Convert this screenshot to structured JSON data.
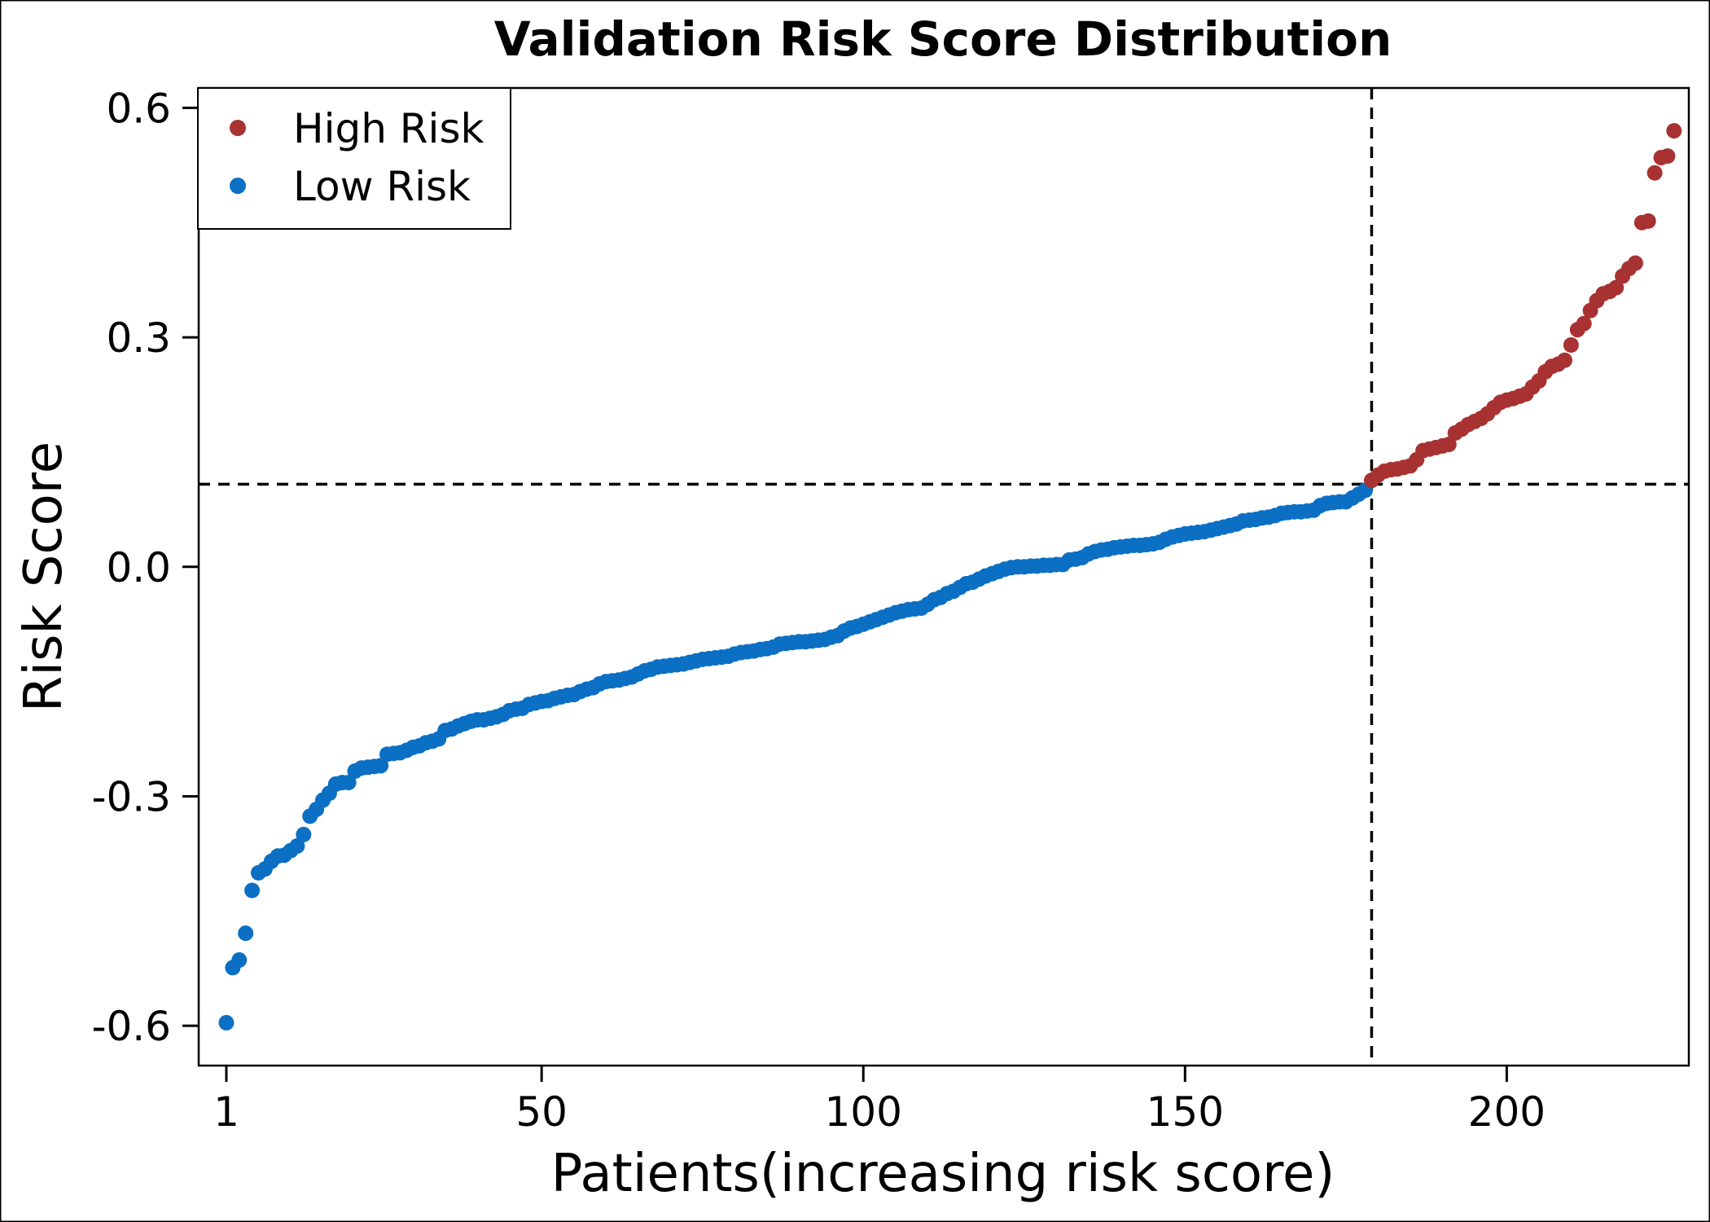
{
  "chart_data": {
    "type": "scatter",
    "title": "Validation Risk Score Distribution",
    "xlabel": "Patients(increasing risk score)",
    "ylabel": "Risk Score",
    "xlim": [
      -3.3,
      228.3
    ],
    "ylim": [
      -0.652,
      0.626
    ],
    "x_ticks": [
      {
        "value": 1,
        "label": "1"
      },
      {
        "value": 50,
        "label": "50"
      },
      {
        "value": 100,
        "label": "100"
      },
      {
        "value": 150,
        "label": "150"
      },
      {
        "value": 200,
        "label": "200"
      }
    ],
    "y_ticks": [
      {
        "value": 0.6,
        "label": "0.6"
      },
      {
        "value": 0.3,
        "label": "0.3"
      },
      {
        "value": 0.0,
        "label": "0.0"
      },
      {
        "value": -0.3,
        "label": "-0.3"
      },
      {
        "value": -0.6,
        "label": "-0.6"
      }
    ],
    "cutoff": {
      "x": 179,
      "y": 0.108
    },
    "grid": false,
    "legend": {
      "placement": "top-left",
      "entries": [
        {
          "label": "High Risk",
          "color": "#a83232"
        },
        {
          "label": "Low Risk",
          "color": "#0b6fc4"
        }
      ]
    },
    "series": [
      {
        "name": "Low Risk",
        "color": "#0b6fc4",
        "x_start": 1,
        "values": [
          -0.596,
          -0.524,
          -0.514,
          -0.479,
          -0.423,
          -0.4,
          -0.395,
          -0.385,
          -0.378,
          -0.377,
          -0.371,
          -0.365,
          -0.35,
          -0.326,
          -0.317,
          -0.305,
          -0.296,
          -0.284,
          -0.282,
          -0.282,
          -0.267,
          -0.263,
          -0.262,
          -0.261,
          -0.26,
          -0.245,
          -0.244,
          -0.243,
          -0.24,
          -0.236,
          -0.234,
          -0.23,
          -0.228,
          -0.225,
          -0.214,
          -0.212,
          -0.208,
          -0.205,
          -0.202,
          -0.2,
          -0.2,
          -0.198,
          -0.196,
          -0.193,
          -0.188,
          -0.186,
          -0.185,
          -0.18,
          -0.178,
          -0.176,
          -0.175,
          -0.172,
          -0.17,
          -0.168,
          -0.167,
          -0.163,
          -0.16,
          -0.158,
          -0.153,
          -0.15,
          -0.149,
          -0.148,
          -0.146,
          -0.144,
          -0.14,
          -0.136,
          -0.134,
          -0.131,
          -0.13,
          -0.129,
          -0.128,
          -0.127,
          -0.125,
          -0.123,
          -0.121,
          -0.12,
          -0.119,
          -0.118,
          -0.117,
          -0.114,
          -0.112,
          -0.111,
          -0.11,
          -0.108,
          -0.107,
          -0.105,
          -0.101,
          -0.1,
          -0.099,
          -0.098,
          -0.098,
          -0.097,
          -0.096,
          -0.095,
          -0.092,
          -0.09,
          -0.084,
          -0.08,
          -0.078,
          -0.075,
          -0.072,
          -0.069,
          -0.066,
          -0.063,
          -0.06,
          -0.058,
          -0.056,
          -0.055,
          -0.054,
          -0.049,
          -0.043,
          -0.04,
          -0.035,
          -0.032,
          -0.027,
          -0.022,
          -0.02,
          -0.016,
          -0.012,
          -0.009,
          -0.006,
          -0.003,
          -0.001,
          0.0,
          0.0,
          0.001,
          0.001,
          0.002,
          0.002,
          0.003,
          0.003,
          0.009,
          0.01,
          0.012,
          0.017,
          0.02,
          0.022,
          0.023,
          0.025,
          0.026,
          0.027,
          0.028,
          0.028,
          0.029,
          0.03,
          0.032,
          0.036,
          0.039,
          0.041,
          0.043,
          0.044,
          0.045,
          0.046,
          0.048,
          0.05,
          0.052,
          0.054,
          0.056,
          0.06,
          0.061,
          0.062,
          0.064,
          0.065,
          0.067,
          0.07,
          0.071,
          0.072,
          0.072,
          0.073,
          0.074,
          0.08,
          0.083,
          0.084,
          0.085,
          0.085,
          0.09,
          0.095,
          0.1
        ]
      },
      {
        "name": "High Risk",
        "color": "#a83232",
        "x_start": 179,
        "values": [
          0.113,
          0.12,
          0.125,
          0.127,
          0.128,
          0.13,
          0.132,
          0.14,
          0.152,
          0.154,
          0.156,
          0.158,
          0.16,
          0.175,
          0.18,
          0.186,
          0.19,
          0.194,
          0.2,
          0.208,
          0.215,
          0.218,
          0.22,
          0.223,
          0.226,
          0.235,
          0.243,
          0.255,
          0.262,
          0.265,
          0.27,
          0.29,
          0.31,
          0.318,
          0.335,
          0.348,
          0.357,
          0.36,
          0.365,
          0.38,
          0.39,
          0.397,
          0.45,
          0.452,
          0.515,
          0.535,
          0.537,
          0.57
        ]
      }
    ]
  }
}
